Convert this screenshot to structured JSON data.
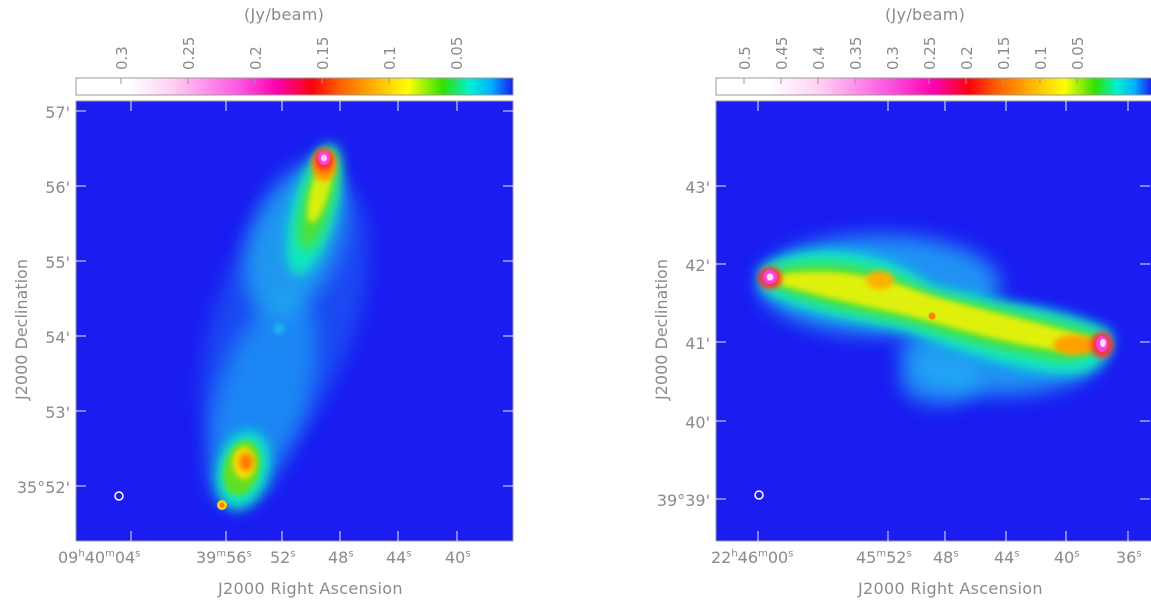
{
  "figure": {
    "left": {
      "colorbar": {
        "unit_label": "(Jy/beam)",
        "ticks": [
          "0.3",
          "0.25",
          "0.2",
          "0.15",
          "0.1",
          "0.05"
        ]
      },
      "ylabel": "J2000 Declination",
      "xlabel": "J2000 Right Ascension",
      "y_ticks": [
        {
          "deg": "",
          "min": "57'"
        },
        {
          "deg": "",
          "min": "56'"
        },
        {
          "deg": "",
          "min": "55'"
        },
        {
          "deg": "",
          "min": "54'"
        },
        {
          "deg": "",
          "min": "53'"
        },
        {
          "deg": "35°",
          "min": "52'"
        }
      ],
      "x_ticks": [
        {
          "h": "09",
          "m": "40",
          "s": "04"
        },
        {
          "h": "",
          "m": "39",
          "s": "56"
        },
        {
          "h": "",
          "m": "",
          "s": "52"
        },
        {
          "h": "",
          "m": "",
          "s": "48"
        },
        {
          "h": "",
          "m": "",
          "s": "44"
        },
        {
          "h": "",
          "m": "",
          "s": "40"
        }
      ]
    },
    "right": {
      "colorbar": {
        "unit_label": "(Jy/beam)",
        "ticks": [
          "0.5",
          "0.45",
          "0.4",
          "0.35",
          "0.3",
          "0.25",
          "0.2",
          "0.15",
          "0.1",
          "0.05"
        ]
      },
      "ylabel": "J2000 Declination",
      "xlabel": "J2000 Right Ascension",
      "y_ticks": [
        {
          "deg": "",
          "min": "43'"
        },
        {
          "deg": "",
          "min": "42'"
        },
        {
          "deg": "",
          "min": "41'"
        },
        {
          "deg": "",
          "min": "40'"
        },
        {
          "deg": "39°",
          "min": "39'"
        }
      ],
      "x_ticks": [
        {
          "h": "22",
          "m": "46",
          "s": "00"
        },
        {
          "h": "",
          "m": "45",
          "s": "52"
        },
        {
          "h": "",
          "m": "",
          "s": "48"
        },
        {
          "h": "",
          "m": "",
          "s": "44"
        },
        {
          "h": "",
          "m": "",
          "s": "40"
        },
        {
          "h": "",
          "m": "",
          "s": "36"
        }
      ]
    }
  },
  "colors": {
    "background_map": "#1a1cf0",
    "axis_text": "#8a8a8a"
  }
}
